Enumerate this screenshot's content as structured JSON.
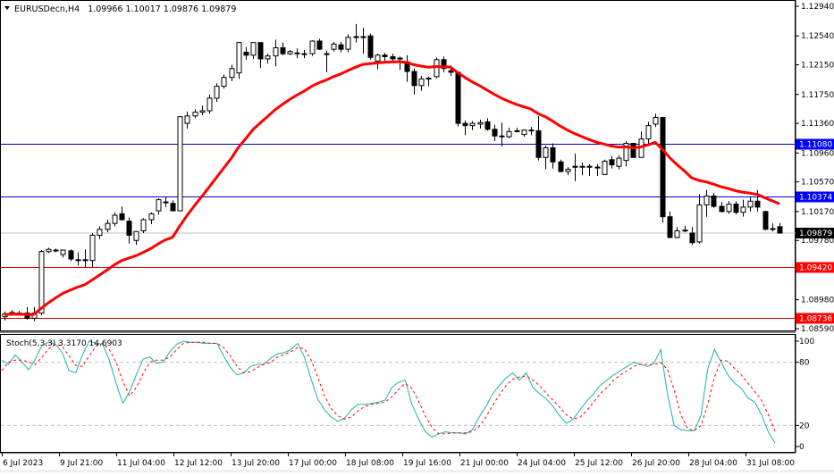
{
  "window": {
    "symbol": "EURUSDecn",
    "timeframe": "H4",
    "header_label": "EURUSDecn,H4",
    "ohlc": {
      "open": "1.09966",
      "high": "1.10017",
      "low": "1.09876",
      "close": "1.09879"
    },
    "ohlc_label": "1.09966 1.10017 1.09876 1.09879"
  },
  "indicator": {
    "label": "Stoch(5,3,3) 3.3170 14.6903",
    "name": "Stoch(5,3,3)",
    "main_value": "3.3170",
    "signal_value": "14.6903",
    "levels": [
      "100",
      "80",
      "20",
      "0"
    ]
  },
  "price_axis": {
    "ticks": [
      "1.12940",
      "1.12540",
      "1.12150",
      "1.11750",
      "1.11360",
      "1.10960",
      "1.10570",
      "1.10170",
      "1.09780",
      "1.09380",
      "1.08980",
      "1.08590"
    ],
    "current_price": "1.09879"
  },
  "horizontal_lines": [
    {
      "price": "1.11080",
      "color": "#0000cc",
      "tag_bg": "#0000ff"
    },
    {
      "price": "1.10374",
      "color": "#0000cc",
      "tag_bg": "#0000ff"
    },
    {
      "price": "1.09420",
      "color": "#dd0000",
      "tag_bg": "#ff0000"
    },
    {
      "price": "1.08736",
      "color": "#dd0000",
      "tag_bg": "#ff0000"
    }
  ],
  "time_axis": {
    "labels": [
      "6 Jul 2023",
      "9 Jul 21:00",
      "11 Jul 04:00",
      "12 Jul 12:00",
      "13 Jul 20:00",
      "17 Jul 00:00",
      "18 Jul 08:00",
      "19 Jul 16:00",
      "21 Jul 00:00",
      "24 Jul 04:00",
      "25 Jul 12:00",
      "26 Jul 20:00",
      "28 Jul 04:00",
      "31 Jul 08:00"
    ]
  },
  "colors": {
    "ma_line": "#ff0000",
    "stoch_main": "#20b2aa",
    "stoch_signal": "#ff0000",
    "bull_candle": "#ffffff",
    "bear_candle": "#000000",
    "grid_level": "#c0c0c0",
    "current_price_line": "#c0c0c0",
    "current_price_tag": "#000000"
  },
  "chart_data": [
    {
      "type": "candlestick",
      "title": "EURUSDecn,H4",
      "subtitle": "1.09966 1.10017 1.09876 1.09879",
      "xlabel": "",
      "ylabel": "",
      "ylim": [
        1.0859,
        1.1294
      ],
      "x_tick_labels": [
        "6 Jul 2023",
        "9 Jul 21:00",
        "11 Jul 04:00",
        "12 Jul 12:00",
        "13 Jul 20:00",
        "17 Jul 00:00",
        "18 Jul 08:00",
        "19 Jul 16:00",
        "21 Jul 00:00",
        "24 Jul 04:00",
        "25 Jul 12:00",
        "26 Jul 20:00",
        "28 Jul 04:00",
        "31 Jul 08:00"
      ],
      "y_tick_labels": [
        "1.12940",
        "1.12540",
        "1.12150",
        "1.11750",
        "1.11360",
        "1.10960",
        "1.10570",
        "1.10170",
        "1.09780",
        "1.09380",
        "1.08980",
        "1.08590"
      ],
      "candles": [
        {
          "o": 1.0875,
          "h": 1.0882,
          "l": 1.087,
          "c": 1.0879
        },
        {
          "o": 1.0879,
          "h": 1.0884,
          "l": 1.0877,
          "c": 1.0881
        },
        {
          "o": 1.088,
          "h": 1.0883,
          "l": 1.0877,
          "c": 1.088
        },
        {
          "o": 1.088,
          "h": 1.0888,
          "l": 1.0871,
          "c": 1.0873
        },
        {
          "o": 1.0873,
          "h": 1.0888,
          "l": 1.0869,
          "c": 1.088
        },
        {
          "o": 1.088,
          "h": 1.0965,
          "l": 1.0877,
          "c": 1.0963
        },
        {
          "o": 1.0963,
          "h": 1.0968,
          "l": 1.0961,
          "c": 1.0966
        },
        {
          "o": 1.0965,
          "h": 1.0967,
          "l": 1.0962,
          "c": 1.0964
        },
        {
          "o": 1.0959,
          "h": 1.0966,
          "l": 1.0955,
          "c": 1.0965
        },
        {
          "o": 1.0964,
          "h": 1.0966,
          "l": 1.095,
          "c": 1.0953
        },
        {
          "o": 1.0952,
          "h": 1.0962,
          "l": 1.0944,
          "c": 1.0952
        },
        {
          "o": 1.0952,
          "h": 1.0966,
          "l": 1.0942,
          "c": 1.0951
        },
        {
          "o": 1.0951,
          "h": 1.0988,
          "l": 1.0942,
          "c": 1.0985
        },
        {
          "o": 1.0985,
          "h": 1.0997,
          "l": 1.098,
          "c": 1.0993
        },
        {
          "o": 1.0993,
          "h": 1.1006,
          "l": 1.0989,
          "c": 1.1001
        },
        {
          "o": 1.1001,
          "h": 1.1016,
          "l": 1.0997,
          "c": 1.1012
        },
        {
          "o": 1.1014,
          "h": 1.1024,
          "l": 1.1005,
          "c": 1.1006
        },
        {
          "o": 1.1004,
          "h": 1.1009,
          "l": 1.0974,
          "c": 1.0985
        },
        {
          "o": 1.0978,
          "h": 1.0991,
          "l": 1.0972,
          "c": 1.099
        },
        {
          "o": 1.0991,
          "h": 1.1008,
          "l": 1.0988,
          "c": 1.1006
        },
        {
          "o": 1.1006,
          "h": 1.1016,
          "l": 1.1,
          "c": 1.1014
        },
        {
          "o": 1.1018,
          "h": 1.1035,
          "l": 1.1013,
          "c": 1.1033
        },
        {
          "o": 1.103,
          "h": 1.1037,
          "l": 1.1023,
          "c": 1.103
        },
        {
          "o": 1.1028,
          "h": 1.1032,
          "l": 1.1018,
          "c": 1.1018
        },
        {
          "o": 1.1018,
          "h": 1.1146,
          "l": 1.1018,
          "c": 1.1145
        },
        {
          "o": 1.1136,
          "h": 1.1152,
          "l": 1.1129,
          "c": 1.1146
        },
        {
          "o": 1.1146,
          "h": 1.1155,
          "l": 1.1143,
          "c": 1.1151
        },
        {
          "o": 1.1151,
          "h": 1.116,
          "l": 1.1147,
          "c": 1.1153
        },
        {
          "o": 1.1153,
          "h": 1.1175,
          "l": 1.1149,
          "c": 1.117
        },
        {
          "o": 1.117,
          "h": 1.119,
          "l": 1.1165,
          "c": 1.1186
        },
        {
          "o": 1.1186,
          "h": 1.1202,
          "l": 1.1183,
          "c": 1.1198
        },
        {
          "o": 1.1198,
          "h": 1.1215,
          "l": 1.1193,
          "c": 1.121
        },
        {
          "o": 1.1204,
          "h": 1.1246,
          "l": 1.1196,
          "c": 1.1245
        },
        {
          "o": 1.1232,
          "h": 1.1239,
          "l": 1.1222,
          "c": 1.1228
        },
        {
          "o": 1.1228,
          "h": 1.1245,
          "l": 1.1223,
          "c": 1.1245
        },
        {
          "o": 1.1245,
          "h": 1.1245,
          "l": 1.1211,
          "c": 1.1223
        },
        {
          "o": 1.1223,
          "h": 1.123,
          "l": 1.1217,
          "c": 1.1227
        },
        {
          "o": 1.1227,
          "h": 1.1249,
          "l": 1.1213,
          "c": 1.1238
        },
        {
          "o": 1.1238,
          "h": 1.1245,
          "l": 1.1228,
          "c": 1.123
        },
        {
          "o": 1.123,
          "h": 1.1235,
          "l": 1.1228,
          "c": 1.1233
        },
        {
          "o": 1.1231,
          "h": 1.1237,
          "l": 1.1224,
          "c": 1.1231
        },
        {
          "o": 1.123,
          "h": 1.1235,
          "l": 1.1224,
          "c": 1.123
        },
        {
          "o": 1.123,
          "h": 1.1248,
          "l": 1.1227,
          "c": 1.1247
        },
        {
          "o": 1.1247,
          "h": 1.125,
          "l": 1.1235,
          "c": 1.1236
        },
        {
          "o": 1.123,
          "h": 1.1234,
          "l": 1.1205,
          "c": 1.123
        },
        {
          "o": 1.1236,
          "h": 1.1246,
          "l": 1.1233,
          "c": 1.1243
        },
        {
          "o": 1.1242,
          "h": 1.1246,
          "l": 1.1232,
          "c": 1.1236
        },
        {
          "o": 1.1236,
          "h": 1.1256,
          "l": 1.1232,
          "c": 1.1252
        },
        {
          "o": 1.1253,
          "h": 1.127,
          "l": 1.1245,
          "c": 1.1253
        },
        {
          "o": 1.1253,
          "h": 1.1265,
          "l": 1.123,
          "c": 1.1253
        },
        {
          "o": 1.1254,
          "h": 1.1257,
          "l": 1.1222,
          "c": 1.1225
        },
        {
          "o": 1.122,
          "h": 1.123,
          "l": 1.1209,
          "c": 1.1228
        },
        {
          "o": 1.1228,
          "h": 1.1231,
          "l": 1.122,
          "c": 1.1226
        },
        {
          "o": 1.1226,
          "h": 1.123,
          "l": 1.1219,
          "c": 1.1223
        },
        {
          "o": 1.1224,
          "h": 1.1226,
          "l": 1.1208,
          "c": 1.1224
        },
        {
          "o": 1.1219,
          "h": 1.1228,
          "l": 1.1192,
          "c": 1.1206
        },
        {
          "o": 1.1206,
          "h": 1.121,
          "l": 1.1175,
          "c": 1.1187
        },
        {
          "o": 1.1187,
          "h": 1.12,
          "l": 1.118,
          "c": 1.1196
        },
        {
          "o": 1.1196,
          "h": 1.1199,
          "l": 1.1186,
          "c": 1.1197
        },
        {
          "o": 1.1199,
          "h": 1.1225,
          "l": 1.1197,
          "c": 1.1222
        },
        {
          "o": 1.1222,
          "h": 1.1226,
          "l": 1.1205,
          "c": 1.121
        },
        {
          "o": 1.1207,
          "h": 1.1214,
          "l": 1.12,
          "c": 1.1205
        },
        {
          "o": 1.1205,
          "h": 1.1205,
          "l": 1.1132,
          "c": 1.1136
        },
        {
          "o": 1.1136,
          "h": 1.114,
          "l": 1.112,
          "c": 1.1133
        },
        {
          "o": 1.1133,
          "h": 1.1139,
          "l": 1.1127,
          "c": 1.1136
        },
        {
          "o": 1.1135,
          "h": 1.1141,
          "l": 1.1129,
          "c": 1.1137
        },
        {
          "o": 1.1138,
          "h": 1.1143,
          "l": 1.1126,
          "c": 1.1128
        },
        {
          "o": 1.1128,
          "h": 1.1134,
          "l": 1.1112,
          "c": 1.1119
        },
        {
          "o": 1.1119,
          "h": 1.1137,
          "l": 1.1105,
          "c": 1.1119
        },
        {
          "o": 1.1118,
          "h": 1.113,
          "l": 1.1116,
          "c": 1.1125
        },
        {
          "o": 1.1126,
          "h": 1.113,
          "l": 1.1124,
          "c": 1.1125
        },
        {
          "o": 1.1121,
          "h": 1.1128,
          "l": 1.1118,
          "c": 1.1127
        },
        {
          "o": 1.1127,
          "h": 1.1131,
          "l": 1.112,
          "c": 1.1126
        },
        {
          "o": 1.1126,
          "h": 1.1146,
          "l": 1.1086,
          "c": 1.109
        },
        {
          "o": 1.109,
          "h": 1.1106,
          "l": 1.1074,
          "c": 1.1103
        },
        {
          "o": 1.1103,
          "h": 1.1109,
          "l": 1.1075,
          "c": 1.1084
        },
        {
          "o": 1.1084,
          "h": 1.1087,
          "l": 1.107,
          "c": 1.1071
        },
        {
          "o": 1.1071,
          "h": 1.1077,
          "l": 1.1066,
          "c": 1.1074
        },
        {
          "o": 1.1078,
          "h": 1.1095,
          "l": 1.1058,
          "c": 1.1078
        },
        {
          "o": 1.1078,
          "h": 1.1083,
          "l": 1.1066,
          "c": 1.1077
        },
        {
          "o": 1.1077,
          "h": 1.1081,
          "l": 1.1065,
          "c": 1.1078
        },
        {
          "o": 1.1077,
          "h": 1.1081,
          "l": 1.1065,
          "c": 1.1076
        },
        {
          "o": 1.1067,
          "h": 1.1087,
          "l": 1.1067,
          "c": 1.1085
        },
        {
          "o": 1.1087,
          "h": 1.1092,
          "l": 1.1075,
          "c": 1.108
        },
        {
          "o": 1.1078,
          "h": 1.1093,
          "l": 1.1074,
          "c": 1.1089
        },
        {
          "o": 1.1086,
          "h": 1.1112,
          "l": 1.1078,
          "c": 1.1109
        },
        {
          "o": 1.1109,
          "h": 1.1109,
          "l": 1.109,
          "c": 1.109
        },
        {
          "o": 1.109,
          "h": 1.1125,
          "l": 1.109,
          "c": 1.1115
        },
        {
          "o": 1.1115,
          "h": 1.1138,
          "l": 1.1109,
          "c": 1.1133
        },
        {
          "o": 1.1135,
          "h": 1.1149,
          "l": 1.1131,
          "c": 1.1144
        },
        {
          "o": 1.1144,
          "h": 1.1144,
          "l": 1.1002,
          "c": 1.101
        },
        {
          "o": 1.101,
          "h": 1.1017,
          "l": 1.0981,
          "c": 1.0982
        },
        {
          "o": 1.0982,
          "h": 1.0996,
          "l": 1.0981,
          "c": 1.0991
        },
        {
          "o": 1.0992,
          "h": 1.0998,
          "l": 1.0989,
          "c": 1.0991
        },
        {
          "o": 1.0988,
          "h": 1.0996,
          "l": 1.0972,
          "c": 1.0975
        },
        {
          "o": 1.0976,
          "h": 1.104,
          "l": 1.0974,
          "c": 1.1026
        },
        {
          "o": 1.1026,
          "h": 1.1046,
          "l": 1.101,
          "c": 1.1038
        },
        {
          "o": 1.1038,
          "h": 1.1042,
          "l": 1.1022,
          "c": 1.1024
        },
        {
          "o": 1.1024,
          "h": 1.103,
          "l": 1.1016,
          "c": 1.1017
        },
        {
          "o": 1.1017,
          "h": 1.1031,
          "l": 1.1014,
          "c": 1.1027
        },
        {
          "o": 1.1027,
          "h": 1.1031,
          "l": 1.1013,
          "c": 1.1016
        },
        {
          "o": 1.1016,
          "h": 1.1033,
          "l": 1.101,
          "c": 1.1023
        },
        {
          "o": 1.1023,
          "h": 1.1036,
          "l": 1.1017,
          "c": 1.1031
        },
        {
          "o": 1.1031,
          "h": 1.1046,
          "l": 1.1017,
          "c": 1.1023
        },
        {
          "o": 1.1017,
          "h": 1.1018,
          "l": 1.0992,
          "c": 1.0993
        },
        {
          "o": 1.0993,
          "h": 1.1001,
          "l": 1.099,
          "c": 1.0994
        },
        {
          "o": 1.09966,
          "h": 1.10017,
          "l": 1.09876,
          "c": 1.09879
        }
      ],
      "series": [
        {
          "name": "Moving Average (red)",
          "type": "line",
          "values_description": "Smooth red MA starting ~1.0877 at left, dips to ~1.0872 near 7 Jul, rises steadily to peak ~1.1232 around 18-19 Jul, then declines to ~1.1086 by 26 Jul, flattens, then drops to ~1.1025 at end."
        }
      ],
      "horizontal_levels": [
        1.1108,
        1.10374,
        1.09879,
        1.0942,
        1.08736
      ],
      "legend": []
    },
    {
      "type": "line",
      "title": "Stoch(5,3,3) 3.3170 14.6903",
      "ylim": [
        0,
        100
      ],
      "y_tick_labels": [
        "100",
        "80",
        "20",
        "0"
      ],
      "levels": [
        80,
        20
      ],
      "series": [
        {
          "name": "Main %K",
          "color": "#20b2aa",
          "values": [
            82,
            78,
            87,
            80,
            73,
            83,
            96,
            99,
            97,
            89,
            72,
            70,
            87,
            100,
            98,
            97,
            82,
            60,
            41,
            52,
            68,
            83,
            85,
            79,
            80,
            90,
            97,
            100,
            99,
            99,
            98,
            98,
            98,
            86,
            75,
            68,
            70,
            76,
            78,
            78,
            84,
            88,
            89,
            92,
            98,
            85,
            64,
            45,
            35,
            28,
            24,
            27,
            35,
            40,
            40,
            41,
            42,
            44,
            56,
            61,
            63,
            40,
            26,
            14,
            9,
            12,
            14,
            13,
            13,
            12,
            16,
            28,
            38,
            50,
            58,
            65,
            70,
            63,
            70,
            56,
            50,
            45,
            38,
            29,
            22,
            26,
            35,
            43,
            50,
            58,
            63,
            68,
            72,
            76,
            80,
            78,
            76,
            79,
            92,
            50,
            20,
            16,
            15,
            15,
            30,
            74,
            92,
            80,
            68,
            60,
            55,
            46,
            42,
            30,
            14,
            3.3
          ]
        },
        {
          "name": "Signal %D",
          "color": "#ff0000",
          "style": "dashed",
          "values": [
            72,
            80,
            82,
            82,
            80,
            78,
            85,
            93,
            97,
            95,
            86,
            77,
            76,
            86,
            95,
            98,
            92,
            80,
            62,
            48,
            56,
            69,
            80,
            82,
            82,
            85,
            92,
            98,
            99,
            99,
            99,
            98,
            98,
            94,
            86,
            76,
            70,
            71,
            75,
            78,
            80,
            85,
            87,
            90,
            94,
            93,
            82,
            66,
            48,
            36,
            29,
            26,
            28,
            34,
            38,
            40,
            41,
            42,
            47,
            54,
            60,
            55,
            43,
            29,
            18,
            12,
            12,
            13,
            13,
            13,
            14,
            19,
            28,
            39,
            49,
            58,
            64,
            66,
            67,
            63,
            58,
            50,
            44,
            37,
            30,
            26,
            28,
            34,
            42,
            50,
            56,
            63,
            68,
            72,
            76,
            78,
            78,
            78,
            80,
            73,
            54,
            30,
            17,
            15,
            20,
            40,
            66,
            82,
            81,
            74,
            68,
            60,
            52,
            44,
            30,
            14.69
          ]
        }
      ]
    }
  ]
}
